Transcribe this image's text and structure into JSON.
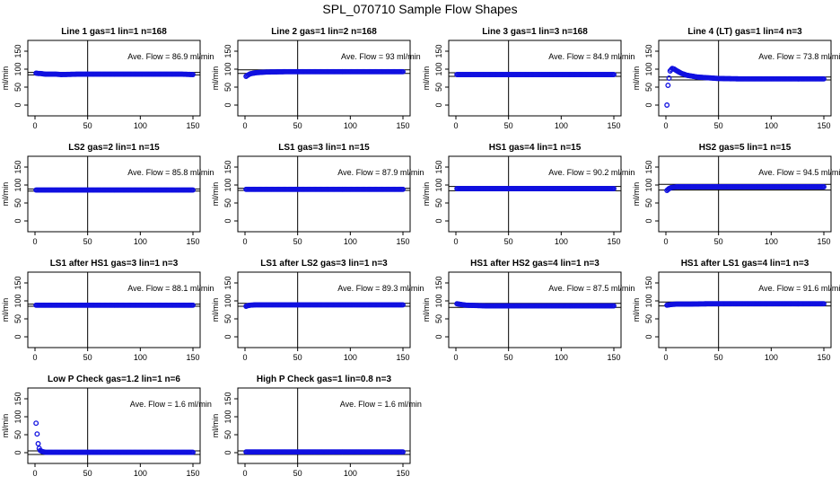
{
  "title": "SPL_070710  Sample Flow Shapes",
  "chart_data": [
    {
      "type": "scatter",
      "title": "Line 1 gas=1 lin=1 n=168",
      "annotation": "Ave. Flow =  86.9  ml/min",
      "ylabel": "ml/min",
      "xlim": [
        0,
        150
      ],
      "ylim": [
        0,
        150
      ],
      "xticks": [
        0,
        50,
        100,
        150
      ],
      "yticks": [
        0,
        50,
        100,
        150
      ],
      "vline": 50,
      "hlines": [
        84,
        91
      ],
      "points": [
        [
          1,
          89
        ],
        [
          3,
          88
        ],
        [
          5,
          88
        ],
        [
          10,
          86
        ],
        [
          20,
          86
        ],
        [
          25,
          85
        ],
        [
          40,
          86
        ],
        [
          60,
          86
        ],
        [
          80,
          86
        ],
        [
          100,
          86
        ],
        [
          120,
          86
        ],
        [
          140,
          86
        ],
        [
          150,
          85
        ]
      ]
    },
    {
      "type": "scatter",
      "title": "Line 2 gas=1 lin=2 n=168",
      "annotation": "Ave. Flow =  93  ml/min",
      "ylabel": "ml/min",
      "xlim": [
        0,
        150
      ],
      "ylim": [
        0,
        150
      ],
      "xticks": [
        0,
        50,
        100,
        150
      ],
      "yticks": [
        0,
        50,
        100,
        150
      ],
      "vline": 50,
      "hlines": [
        88,
        98
      ],
      "points": [
        [
          1,
          80
        ],
        [
          3,
          84
        ],
        [
          5,
          87
        ],
        [
          10,
          90
        ],
        [
          15,
          91
        ],
        [
          20,
          92
        ],
        [
          40,
          93
        ],
        [
          60,
          93
        ],
        [
          80,
          93
        ],
        [
          100,
          93
        ],
        [
          120,
          93
        ],
        [
          140,
          93
        ],
        [
          150,
          93
        ]
      ]
    },
    {
      "type": "scatter",
      "title": "Line 3 gas=1 lin=3 n=168",
      "annotation": "Ave. Flow =  84.9  ml/min",
      "ylabel": "ml/min",
      "xlim": [
        0,
        150
      ],
      "ylim": [
        0,
        150
      ],
      "xticks": [
        0,
        50,
        100,
        150
      ],
      "yticks": [
        0,
        50,
        100,
        150
      ],
      "vline": 50,
      "hlines": [
        80,
        90
      ],
      "points": [
        [
          1,
          85
        ],
        [
          5,
          85
        ],
        [
          20,
          85
        ],
        [
          40,
          85
        ],
        [
          60,
          85
        ],
        [
          80,
          85
        ],
        [
          100,
          85
        ],
        [
          120,
          85
        ],
        [
          140,
          85
        ],
        [
          150,
          85
        ]
      ]
    },
    {
      "type": "scatter",
      "title": "Line 4 (LT) gas=1 lin=4 n=3",
      "annotation": "Ave. Flow =  73.8  ml/min",
      "ylabel": "ml/min",
      "xlim": [
        0,
        150
      ],
      "ylim": [
        0,
        150
      ],
      "xticks": [
        0,
        50,
        100,
        150
      ],
      "yticks": [
        0,
        50,
        100,
        150
      ],
      "vline": 50,
      "hlines": [
        70,
        78
      ],
      "points": [
        [
          1,
          0
        ],
        [
          2,
          55
        ],
        [
          4,
          95
        ],
        [
          6,
          102
        ],
        [
          8,
          100
        ],
        [
          10,
          96
        ],
        [
          15,
          88
        ],
        [
          20,
          83
        ],
        [
          30,
          78
        ],
        [
          40,
          76
        ],
        [
          50,
          74
        ],
        [
          70,
          73
        ],
        [
          100,
          73
        ],
        [
          130,
          73
        ],
        [
          150,
          73
        ]
      ]
    },
    {
      "type": "scatter",
      "title": "LS2 gas=2 lin=1 n=15",
      "annotation": "Ave. Flow =  85.8  ml/min",
      "ylabel": "ml/min",
      "xlim": [
        0,
        150
      ],
      "ylim": [
        0,
        150
      ],
      "xticks": [
        0,
        50,
        100,
        150
      ],
      "yticks": [
        0,
        50,
        100,
        150
      ],
      "vline": 50,
      "hlines": [
        83,
        89
      ],
      "points": [
        [
          1,
          86
        ],
        [
          5,
          86
        ],
        [
          20,
          86
        ],
        [
          40,
          86
        ],
        [
          60,
          86
        ],
        [
          80,
          86
        ],
        [
          100,
          86
        ],
        [
          120,
          86
        ],
        [
          140,
          86
        ],
        [
          150,
          86
        ]
      ]
    },
    {
      "type": "scatter",
      "title": "LS1 gas=3 lin=1 n=15",
      "annotation": "Ave. Flow =  87.9  ml/min",
      "ylabel": "ml/min",
      "xlim": [
        0,
        150
      ],
      "ylim": [
        0,
        150
      ],
      "xticks": [
        0,
        50,
        100,
        150
      ],
      "yticks": [
        0,
        50,
        100,
        150
      ],
      "vline": 50,
      "hlines": [
        85,
        91
      ],
      "points": [
        [
          1,
          88
        ],
        [
          5,
          88
        ],
        [
          20,
          88
        ],
        [
          40,
          88
        ],
        [
          60,
          88
        ],
        [
          80,
          88
        ],
        [
          100,
          88
        ],
        [
          120,
          88
        ],
        [
          140,
          88
        ],
        [
          150,
          88
        ]
      ]
    },
    {
      "type": "scatter",
      "title": "HS1 gas=4 lin=1 n=15",
      "annotation": "Ave. Flow =  90.2  ml/min",
      "ylabel": "ml/min",
      "xlim": [
        0,
        150
      ],
      "ylim": [
        0,
        150
      ],
      "xticks": [
        0,
        50,
        100,
        150
      ],
      "yticks": [
        0,
        50,
        100,
        150
      ],
      "vline": 50,
      "hlines": [
        84,
        96
      ],
      "points": [
        [
          1,
          90
        ],
        [
          5,
          90
        ],
        [
          20,
          90
        ],
        [
          40,
          90
        ],
        [
          60,
          90
        ],
        [
          80,
          90
        ],
        [
          100,
          90
        ],
        [
          120,
          90
        ],
        [
          140,
          90
        ],
        [
          150,
          90
        ]
      ]
    },
    {
      "type": "scatter",
      "title": "HS2 gas=5 lin=1 n=15",
      "annotation": "Ave. Flow =  94.5  ml/min",
      "ylabel": "ml/min",
      "xlim": [
        0,
        150
      ],
      "ylim": [
        0,
        150
      ],
      "xticks": [
        0,
        50,
        100,
        150
      ],
      "yticks": [
        0,
        50,
        100,
        150
      ],
      "vline": 50,
      "hlines": [
        86,
        102
      ],
      "points": [
        [
          1,
          85
        ],
        [
          3,
          90
        ],
        [
          5,
          93
        ],
        [
          10,
          95
        ],
        [
          20,
          95
        ],
        [
          40,
          95
        ],
        [
          60,
          95
        ],
        [
          80,
          95
        ],
        [
          100,
          95
        ],
        [
          120,
          95
        ],
        [
          140,
          95
        ],
        [
          150,
          95
        ]
      ]
    },
    {
      "type": "scatter",
      "title": "LS1 after HS1 gas=3 lin=1 n=3",
      "annotation": "Ave. Flow =  88.1  ml/min",
      "ylabel": "ml/min",
      "xlim": [
        0,
        150
      ],
      "ylim": [
        0,
        150
      ],
      "xticks": [
        0,
        50,
        100,
        150
      ],
      "yticks": [
        0,
        50,
        100,
        150
      ],
      "vline": 50,
      "hlines": [
        85,
        91
      ],
      "points": [
        [
          1,
          88
        ],
        [
          5,
          88
        ],
        [
          20,
          88
        ],
        [
          40,
          88
        ],
        [
          60,
          88
        ],
        [
          80,
          88
        ],
        [
          100,
          88
        ],
        [
          120,
          88
        ],
        [
          140,
          88
        ],
        [
          150,
          88
        ]
      ]
    },
    {
      "type": "scatter",
      "title": "LS1 after LS2 gas=3 lin=1 n=3",
      "annotation": "Ave. Flow =  89.3  ml/min",
      "ylabel": "ml/min",
      "xlim": [
        0,
        150
      ],
      "ylim": [
        0,
        150
      ],
      "xticks": [
        0,
        50,
        100,
        150
      ],
      "yticks": [
        0,
        50,
        100,
        150
      ],
      "vline": 50,
      "hlines": [
        85,
        93
      ],
      "points": [
        [
          1,
          85
        ],
        [
          3,
          87
        ],
        [
          5,
          88
        ],
        [
          10,
          89
        ],
        [
          20,
          89
        ],
        [
          40,
          89
        ],
        [
          60,
          89
        ],
        [
          80,
          89
        ],
        [
          100,
          89
        ],
        [
          120,
          89
        ],
        [
          140,
          89
        ],
        [
          150,
          89
        ]
      ]
    },
    {
      "type": "scatter",
      "title": "HS1 after HS2 gas=4 lin=1 n=3",
      "annotation": "Ave. Flow =  87.5  ml/min",
      "ylabel": "ml/min",
      "xlim": [
        0,
        150
      ],
      "ylim": [
        0,
        150
      ],
      "xticks": [
        0,
        50,
        100,
        150
      ],
      "yticks": [
        0,
        50,
        100,
        150
      ],
      "vline": 50,
      "hlines": [
        82,
        93
      ],
      "points": [
        [
          1,
          92
        ],
        [
          3,
          91
        ],
        [
          5,
          90
        ],
        [
          10,
          88
        ],
        [
          20,
          87
        ],
        [
          30,
          86
        ],
        [
          40,
          86
        ],
        [
          60,
          86
        ],
        [
          80,
          86
        ],
        [
          100,
          86
        ],
        [
          120,
          86
        ],
        [
          140,
          86
        ],
        [
          150,
          86
        ]
      ]
    },
    {
      "type": "scatter",
      "title": "HS1 after LS1 gas=4 lin=1 n=3",
      "annotation": "Ave. Flow =  91.6  ml/min",
      "ylabel": "ml/min",
      "xlim": [
        0,
        150
      ],
      "ylim": [
        0,
        150
      ],
      "xticks": [
        0,
        50,
        100,
        150
      ],
      "yticks": [
        0,
        50,
        100,
        150
      ],
      "vline": 50,
      "hlines": [
        86,
        97
      ],
      "points": [
        [
          1,
          88
        ],
        [
          3,
          89
        ],
        [
          5,
          90
        ],
        [
          10,
          91
        ],
        [
          20,
          91
        ],
        [
          40,
          92
        ],
        [
          60,
          92
        ],
        [
          80,
          92
        ],
        [
          100,
          92
        ],
        [
          120,
          92
        ],
        [
          140,
          92
        ],
        [
          150,
          92
        ]
      ]
    },
    {
      "type": "scatter",
      "title": "Low P Check gas=1.2 lin=1 n=6",
      "annotation": "Ave. Flow =  1.6  ml/min",
      "ylabel": "ml/min",
      "xlim": [
        0,
        150
      ],
      "ylim": [
        0,
        150
      ],
      "xticks": [
        0,
        50,
        100,
        150
      ],
      "yticks": [
        0,
        50,
        100,
        150
      ],
      "vline": 50,
      "hlines": [
        -5,
        5
      ],
      "points": [
        [
          1,
          82
        ],
        [
          2,
          52
        ],
        [
          3,
          25
        ],
        [
          4,
          12
        ],
        [
          5,
          6
        ],
        [
          7,
          3
        ],
        [
          10,
          1
        ],
        [
          20,
          1
        ],
        [
          40,
          1
        ],
        [
          60,
          1
        ],
        [
          80,
          1
        ],
        [
          100,
          1
        ],
        [
          120,
          1
        ],
        [
          140,
          1
        ],
        [
          150,
          1
        ]
      ]
    },
    {
      "type": "scatter",
      "title": "High P Check gas=1 lin=0.8 n=3",
      "annotation": "Ave. Flow =  1.6  ml/min",
      "ylabel": "ml/min",
      "xlim": [
        0,
        150
      ],
      "ylim": [
        0,
        150
      ],
      "xticks": [
        0,
        50,
        100,
        150
      ],
      "yticks": [
        0,
        50,
        100,
        150
      ],
      "vline": 50,
      "hlines": [
        -5,
        5
      ],
      "points": [
        [
          1,
          2
        ],
        [
          5,
          2
        ],
        [
          20,
          2
        ],
        [
          40,
          2
        ],
        [
          60,
          2
        ],
        [
          80,
          2
        ],
        [
          100,
          2
        ],
        [
          120,
          2
        ],
        [
          140,
          2
        ],
        [
          150,
          2
        ]
      ]
    }
  ]
}
